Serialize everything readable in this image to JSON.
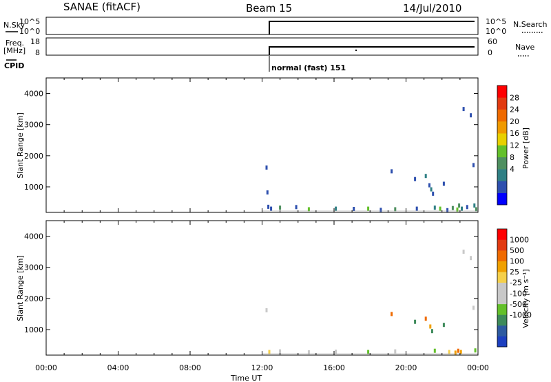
{
  "header": {
    "station": "SANAE (fitACF)",
    "beam": "Beam 15",
    "date": "14/Jul/2010"
  },
  "noise_panel": {
    "left_label": "N.Sky",
    "left_ticks": [
      "10^5",
      "10^0"
    ],
    "right_ticks": [
      "10^5",
      "10^0"
    ],
    "right_label": "N.Search"
  },
  "freq_panel": {
    "left_label_1": "Freq.",
    "left_label_2": "[MHz]",
    "left_ticks": [
      "18",
      "8"
    ],
    "right_ticks": [
      "60",
      "0"
    ],
    "right_label": "Nave"
  },
  "cpid": {
    "label": "CPID",
    "text": "normal (fast) 151"
  },
  "time_axis": {
    "title": "Time UT",
    "ticks": [
      "00:00",
      "04:00",
      "08:00",
      "12:00",
      "16:00",
      "20:00",
      "00:00"
    ]
  },
  "chart_data": [
    {
      "type": "heatmap",
      "name": "power",
      "ylabel": "Slant Range [km]",
      "yticks": [
        "1000",
        "2000",
        "3000",
        "4000"
      ],
      "ylim": [
        180,
        4500
      ],
      "xlim": [
        0,
        24
      ],
      "colorbar": {
        "label": "Power [dB]",
        "ticks": [
          "28",
          "24",
          "20",
          "16",
          "12",
          "8",
          "4"
        ],
        "colors": [
          "#0000ff",
          "#2d4fae",
          "#2f7f84",
          "#4e8f5f",
          "#63c02a",
          "#e8d000",
          "#f09a00",
          "#ef6a00",
          "#e23a10",
          "#ff0000"
        ]
      },
      "points": [
        {
          "t": 12.25,
          "r": 1620,
          "c": 1
        },
        {
          "t": 12.3,
          "r": 820,
          "c": 1
        },
        {
          "t": 12.35,
          "r": 360,
          "c": 1
        },
        {
          "t": 12.5,
          "r": 300,
          "c": 1
        },
        {
          "t": 13.0,
          "r": 330,
          "c": 3
        },
        {
          "t": 13.9,
          "r": 350,
          "c": 1
        },
        {
          "t": 14.6,
          "r": 280,
          "c": 4
        },
        {
          "t": 16.1,
          "r": 300,
          "c": 2
        },
        {
          "t": 17.1,
          "r": 290,
          "c": 1
        },
        {
          "t": 17.9,
          "r": 300,
          "c": 4
        },
        {
          "t": 18.6,
          "r": 260,
          "c": 1
        },
        {
          "t": 19.2,
          "r": 1500,
          "c": 1
        },
        {
          "t": 19.4,
          "r": 280,
          "c": 3
        },
        {
          "t": 20.5,
          "r": 1250,
          "c": 1
        },
        {
          "t": 20.6,
          "r": 300,
          "c": 1
        },
        {
          "t": 21.1,
          "r": 1350,
          "c": 2
        },
        {
          "t": 21.3,
          "r": 1050,
          "c": 1
        },
        {
          "t": 21.4,
          "r": 920,
          "c": 2
        },
        {
          "t": 21.5,
          "r": 780,
          "c": 1
        },
        {
          "t": 21.6,
          "r": 330,
          "c": 2
        },
        {
          "t": 21.9,
          "r": 300,
          "c": 4
        },
        {
          "t": 22.1,
          "r": 1100,
          "c": 1
        },
        {
          "t": 22.3,
          "r": 250,
          "c": 1
        },
        {
          "t": 22.6,
          "r": 320,
          "c": 3
        },
        {
          "t": 22.85,
          "r": 270,
          "c": 4
        },
        {
          "t": 22.95,
          "r": 400,
          "c": 3
        },
        {
          "t": 23.1,
          "r": 300,
          "c": 2
        },
        {
          "t": 23.2,
          "r": 3500,
          "c": 1
        },
        {
          "t": 23.4,
          "r": 350,
          "c": 1
        },
        {
          "t": 23.6,
          "r": 3300,
          "c": 1
        },
        {
          "t": 23.75,
          "r": 1700,
          "c": 1
        },
        {
          "t": 23.8,
          "r": 400,
          "c": 2
        },
        {
          "t": 23.9,
          "r": 280,
          "c": 3
        }
      ]
    },
    {
      "type": "heatmap",
      "name": "velocity",
      "ylabel": "Slant Range [km]",
      "yticks": [
        "1000",
        "2000",
        "3000",
        "4000"
      ],
      "ylim": [
        180,
        4500
      ],
      "xlim": [
        0,
        24
      ],
      "colorbar": {
        "label": "Velocity [m s⁻¹]",
        "ticks": [
          "1000",
          "500",
          "100",
          "25",
          "-25",
          "-100",
          "-500",
          "-1000"
        ],
        "colors": [
          "#1c3fbf",
          "#2d5aa0",
          "#3d8a5a",
          "#63c02a",
          "#c8c8c8",
          "#c8c8c8",
          "#f5d04a",
          "#f0a000",
          "#ef6a00",
          "#e23a10",
          "#ff0000"
        ]
      },
      "points": [
        {
          "t": 12.25,
          "r": 1620,
          "c": 4
        },
        {
          "t": 12.4,
          "r": 280,
          "c": 6
        },
        {
          "t": 13.0,
          "r": 300,
          "c": 5
        },
        {
          "t": 14.6,
          "r": 270,
          "c": 4
        },
        {
          "t": 16.1,
          "r": 290,
          "c": 5
        },
        {
          "t": 17.9,
          "r": 280,
          "c": 3
        },
        {
          "t": 19.2,
          "r": 1500,
          "c": 8
        },
        {
          "t": 19.4,
          "r": 300,
          "c": 5
        },
        {
          "t": 20.5,
          "r": 1250,
          "c": 2
        },
        {
          "t": 21.1,
          "r": 1350,
          "c": 8
        },
        {
          "t": 21.35,
          "r": 1100,
          "c": 7
        },
        {
          "t": 21.45,
          "r": 950,
          "c": 2
        },
        {
          "t": 21.6,
          "r": 320,
          "c": 3
        },
        {
          "t": 22.1,
          "r": 1150,
          "c": 2
        },
        {
          "t": 22.4,
          "r": 280,
          "c": 6
        },
        {
          "t": 22.75,
          "r": 260,
          "c": 7
        },
        {
          "t": 22.9,
          "r": 320,
          "c": 8
        },
        {
          "t": 23.05,
          "r": 280,
          "c": 7
        },
        {
          "t": 23.2,
          "r": 3500,
          "c": 4
        },
        {
          "t": 23.6,
          "r": 3300,
          "c": 4
        },
        {
          "t": 23.75,
          "r": 1700,
          "c": 4
        },
        {
          "t": 23.85,
          "r": 330,
          "c": 3
        }
      ]
    }
  ]
}
